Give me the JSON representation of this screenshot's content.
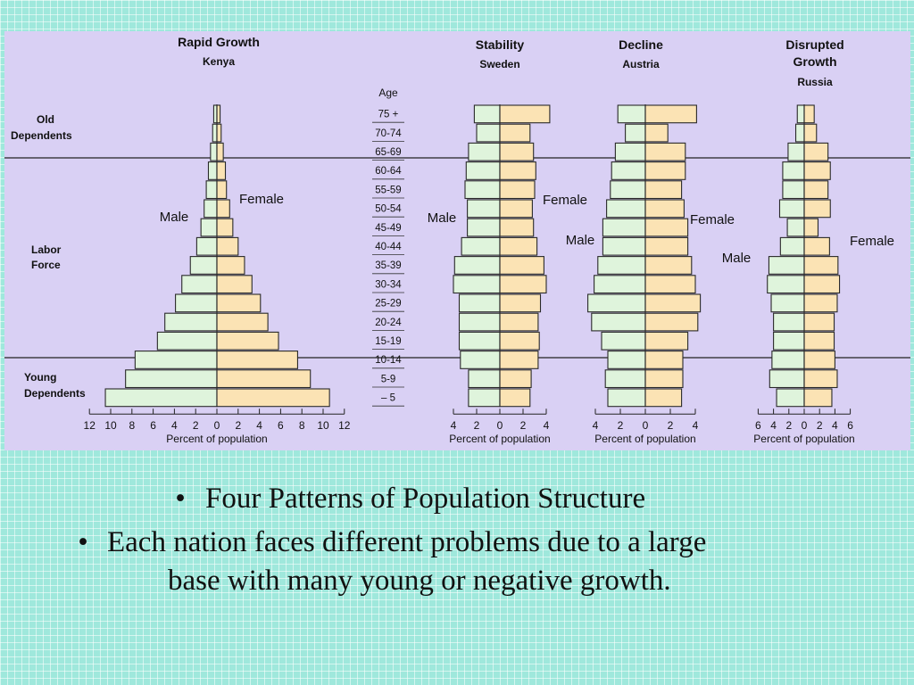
{
  "bullets": [
    "Four Patterns of Population Structure",
    "Each nation faces different problems due to a large base with many young or negative growth."
  ],
  "bullet_line2_split": "Each nation faces different problems due to a large",
  "colors": {
    "male": "#dff4dc",
    "female": "#fbe3b4",
    "panel": "#d9d0f4",
    "stroke": "#2a2a2a"
  },
  "side_labels": {
    "old": [
      "Old",
      "Dependents"
    ],
    "labor": [
      "Labor",
      "Force"
    ],
    "young": [
      "Young",
      "Dependents"
    ]
  },
  "age_header": "Age",
  "age_groups": [
    "75 +",
    "70-74",
    "65-69",
    "60-64",
    "55-59",
    "50-54",
    "45-49",
    "40-44",
    "35-39",
    "30-34",
    "25-29",
    "20-24",
    "15-19",
    "10-14",
    "5-9",
    "– 5"
  ],
  "chart_data": [
    {
      "type": "bar",
      "orientation": "population-pyramid",
      "title": "Rapid Growth",
      "subtitle": "Kenya",
      "xlabel": "Percent of population",
      "xlim": [
        -12,
        12
      ],
      "xticks": [
        "12",
        "10",
        "8",
        "6",
        "4",
        "2",
        "0",
        "2",
        "4",
        "6",
        "8",
        "10",
        "12"
      ],
      "male_label": "Male",
      "female_label": "Female",
      "categories": [
        "– 5",
        "5-9",
        "10-14",
        "15-19",
        "20-24",
        "25-29",
        "30-34",
        "35-39",
        "40-44",
        "45-49",
        "50-54",
        "55-59",
        "60-64",
        "65-69",
        "70-74",
        "75 +"
      ],
      "series": [
        {
          "name": "Male",
          "values": [
            10.5,
            8.6,
            7.7,
            5.6,
            4.9,
            3.9,
            3.3,
            2.5,
            1.9,
            1.5,
            1.2,
            1.0,
            0.8,
            0.6,
            0.4,
            0.3
          ]
        },
        {
          "name": "Female",
          "values": [
            10.6,
            8.8,
            7.6,
            5.8,
            4.8,
            4.1,
            3.3,
            2.6,
            2.0,
            1.5,
            1.2,
            0.9,
            0.8,
            0.6,
            0.4,
            0.3
          ]
        }
      ]
    },
    {
      "type": "bar",
      "orientation": "population-pyramid",
      "title": "Stability",
      "subtitle": "Sweden",
      "xlabel": "Percent of population",
      "xlim": [
        -4,
        4
      ],
      "xticks": [
        "4",
        "2",
        "0",
        "2",
        "4"
      ],
      "male_label": "Male",
      "female_label": "Female",
      "categories": [
        "– 5",
        "5-9",
        "10-14",
        "15-19",
        "20-24",
        "25-29",
        "30-34",
        "35-39",
        "40-44",
        "45-49",
        "50-54",
        "55-59",
        "60-64",
        "65-69",
        "70-74",
        "75 +"
      ],
      "series": [
        {
          "name": "Male",
          "values": [
            2.7,
            2.7,
            3.4,
            3.5,
            3.5,
            3.5,
            4.0,
            3.9,
            3.3,
            2.8,
            2.8,
            3.0,
            2.9,
            2.7,
            2.0,
            2.2
          ]
        },
        {
          "name": "Female",
          "values": [
            2.6,
            2.7,
            3.3,
            3.4,
            3.3,
            3.5,
            4.0,
            3.8,
            3.2,
            2.9,
            2.8,
            3.0,
            3.1,
            2.9,
            2.6,
            4.3
          ]
        }
      ]
    },
    {
      "type": "bar",
      "orientation": "population-pyramid",
      "title": "Decline",
      "subtitle": "Austria",
      "xlabel": "Percent of population",
      "xlim": [
        -4,
        4
      ],
      "xticks": [
        "4",
        "2",
        "0",
        "2",
        "4"
      ],
      "male_label": "Male",
      "female_label": "Female",
      "categories": [
        "– 5",
        "5-9",
        "10-14",
        "15-19",
        "20-24",
        "25-29",
        "30-34",
        "35-39",
        "40-44",
        "45-49",
        "50-54",
        "55-59",
        "60-64",
        "65-69",
        "70-74",
        "75 +"
      ],
      "series": [
        {
          "name": "Male",
          "values": [
            3.0,
            3.2,
            3.0,
            3.5,
            4.3,
            4.6,
            4.1,
            3.8,
            3.4,
            3.4,
            3.1,
            2.8,
            2.7,
            2.4,
            1.6,
            2.2
          ]
        },
        {
          "name": "Female",
          "values": [
            2.9,
            3.0,
            3.0,
            3.4,
            4.2,
            4.4,
            4.0,
            3.7,
            3.4,
            3.4,
            3.1,
            2.9,
            3.2,
            3.2,
            1.8,
            4.1
          ]
        }
      ]
    },
    {
      "type": "bar",
      "orientation": "population-pyramid",
      "title": "Disrupted Growth",
      "subtitle": "Russia",
      "xlabel": "Percent of population",
      "xlim": [
        -6,
        6
      ],
      "xticks": [
        "6",
        "4",
        "2",
        "0",
        "2",
        "4",
        "6"
      ],
      "male_label": "Male",
      "female_label": "Female",
      "categories": [
        "– 5",
        "5-9",
        "10-14",
        "15-19",
        "20-24",
        "25-29",
        "30-34",
        "35-39",
        "40-44",
        "45-49",
        "50-54",
        "55-59",
        "60-64",
        "65-69",
        "70-74",
        "75 +"
      ],
      "series": [
        {
          "name": "Male",
          "values": [
            3.6,
            4.5,
            4.2,
            4.0,
            4.0,
            4.3,
            4.8,
            4.6,
            3.1,
            2.2,
            3.2,
            2.8,
            2.8,
            2.1,
            1.1,
            0.9
          ]
        },
        {
          "name": "Female",
          "values": [
            3.6,
            4.3,
            4.0,
            3.9,
            3.9,
            4.3,
            4.6,
            4.4,
            3.3,
            1.8,
            3.4,
            3.1,
            3.4,
            3.1,
            1.6,
            1.3
          ]
        }
      ]
    }
  ]
}
